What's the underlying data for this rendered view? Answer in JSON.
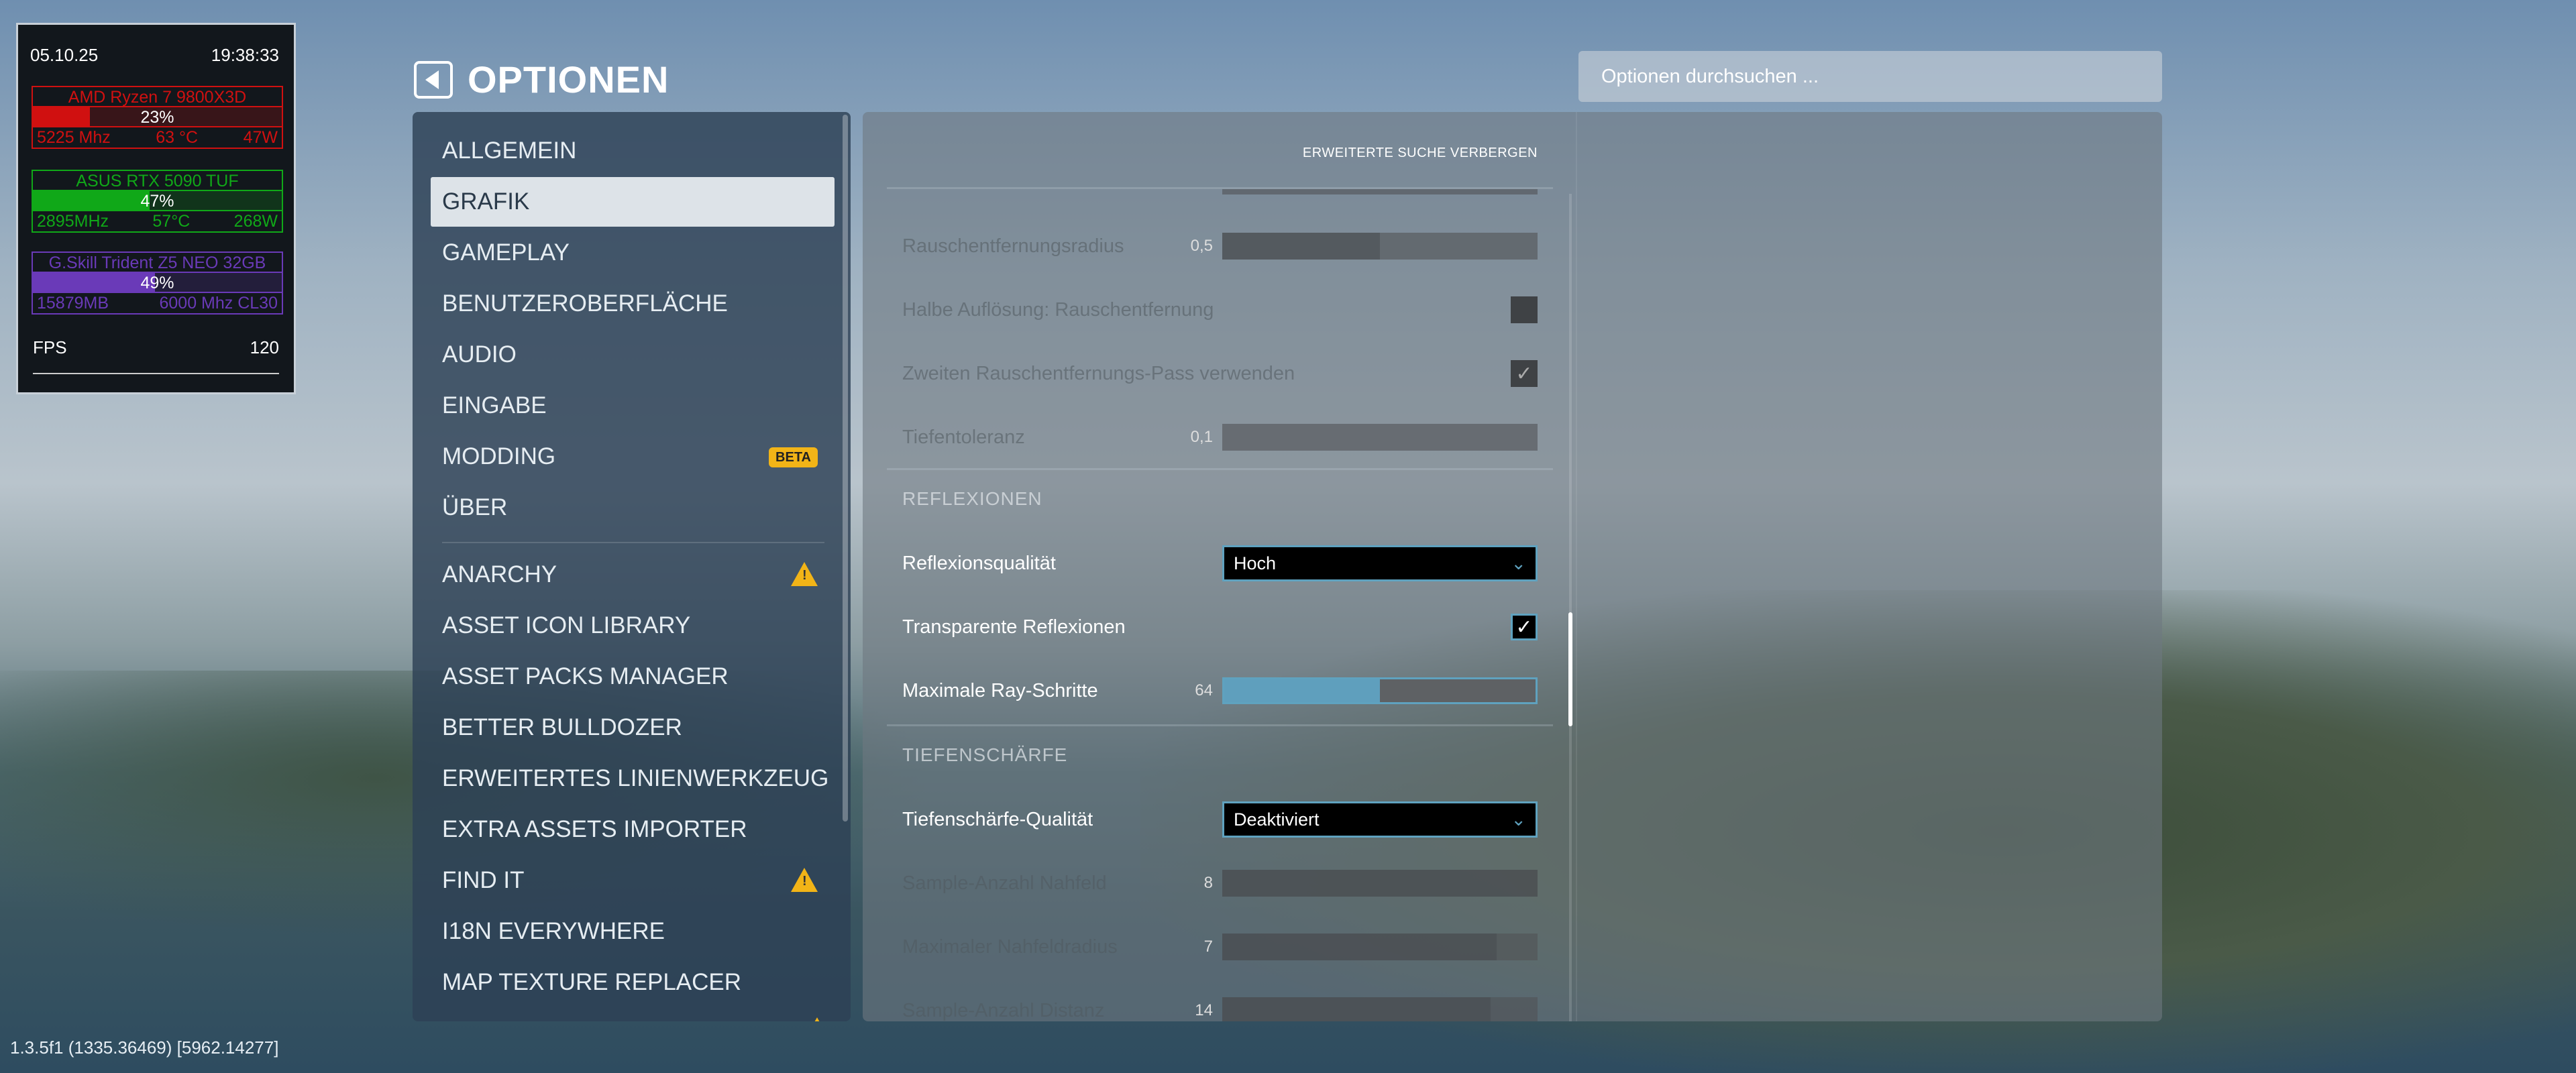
{
  "hud": {
    "date": "05.10.25",
    "time": "19:38:33",
    "cpu": {
      "name": "AMD Ryzen 7 9800X3D",
      "load": "23%",
      "load_pct": 23,
      "clock": "5225 Mhz",
      "temp": "63 °C",
      "power": "47W",
      "color": "#d01010"
    },
    "gpu": {
      "name": "ASUS RTX 5090 TUF",
      "load": "47%",
      "load_pct": 47,
      "clock": "2895MHz",
      "temp": "57°C",
      "power": "268W",
      "color": "#10a818"
    },
    "ram": {
      "name": "G.Skill Trident Z5 NEO 32GB",
      "load": "49%",
      "load_pct": 49,
      "used": "15879MB",
      "speed": "6000 Mhz CL30",
      "color": "#6a3ab8"
    },
    "fps_label": "FPS",
    "fps": "120"
  },
  "header": {
    "title": "OPTIONEN",
    "search_placeholder": "Optionen durchsuchen ..."
  },
  "menu": {
    "items": [
      {
        "label": "ALLGEMEIN"
      },
      {
        "label": "GRAFIK",
        "selected": true
      },
      {
        "label": "GAMEPLAY"
      },
      {
        "label": "BENUTZEROBERFLÄCHE"
      },
      {
        "label": "AUDIO"
      },
      {
        "label": "EINGABE"
      },
      {
        "label": "MODDING",
        "badge": "BETA"
      },
      {
        "label": "ÜBER"
      }
    ],
    "mods": [
      {
        "label": "ANARCHY",
        "warning": true
      },
      {
        "label": "ASSET ICON LIBRARY"
      },
      {
        "label": "ASSET PACKS MANAGER"
      },
      {
        "label": "BETTER BULLDOZER"
      },
      {
        "label": "ERWEITERTES LINIENWERKZEUG"
      },
      {
        "label": "EXTRA ASSETS IMPORTER"
      },
      {
        "label": "FIND IT",
        "warning": true
      },
      {
        "label": "I18N EVERYWHERE"
      },
      {
        "label": "MAP TEXTURE REPLACER"
      }
    ]
  },
  "settings": {
    "advanced_toggle": "ERWEITERTE SUCHE VERBERGEN",
    "rows": [
      {
        "type": "slider",
        "label": "Rauschentfernungsradius",
        "value": "0,5",
        "fill": 0.5,
        "disabled": true
      },
      {
        "type": "checkbox",
        "label": "Halbe Auflösung: Rauschentfernung",
        "checked": false,
        "disabled": true
      },
      {
        "type": "checkbox",
        "label": "Zweiten Rauschentfernungs-Pass verwenden",
        "checked": true,
        "disabled": true
      },
      {
        "type": "slider",
        "label": "Tiefentoleranz",
        "value": "0,1",
        "fill": 0.0,
        "disabled": true
      }
    ],
    "sections": [
      {
        "title": "REFLEXIONEN",
        "rows": [
          {
            "type": "dropdown",
            "label": "Reflexionsqualität",
            "value": "Hoch"
          },
          {
            "type": "checkbox",
            "label": "Transparente Reflexionen",
            "checked": true
          },
          {
            "type": "slider",
            "label": "Maximale Ray-Schritte",
            "value": "64",
            "fill": 0.5,
            "active": true
          }
        ]
      },
      {
        "title": "TIEFENSCHÄRFE",
        "rows": [
          {
            "type": "dropdown",
            "label": "Tiefenschärfe-Qualität",
            "value": "Deaktiviert"
          },
          {
            "type": "slider",
            "label": "Sample-Anzahl Nahfeld",
            "value": "8",
            "fill": 1.0,
            "disabled": true
          },
          {
            "type": "slider",
            "label": "Maximaler Nahfeldradius",
            "value": "7",
            "fill": 0.87,
            "disabled": true
          },
          {
            "type": "slider",
            "label": "Sample-Anzahl Distanz",
            "value": "14",
            "fill": 0.85,
            "disabled": true
          }
        ]
      }
    ]
  },
  "version": "1.3.5f1 (1335.36469) [5962.14277]"
}
